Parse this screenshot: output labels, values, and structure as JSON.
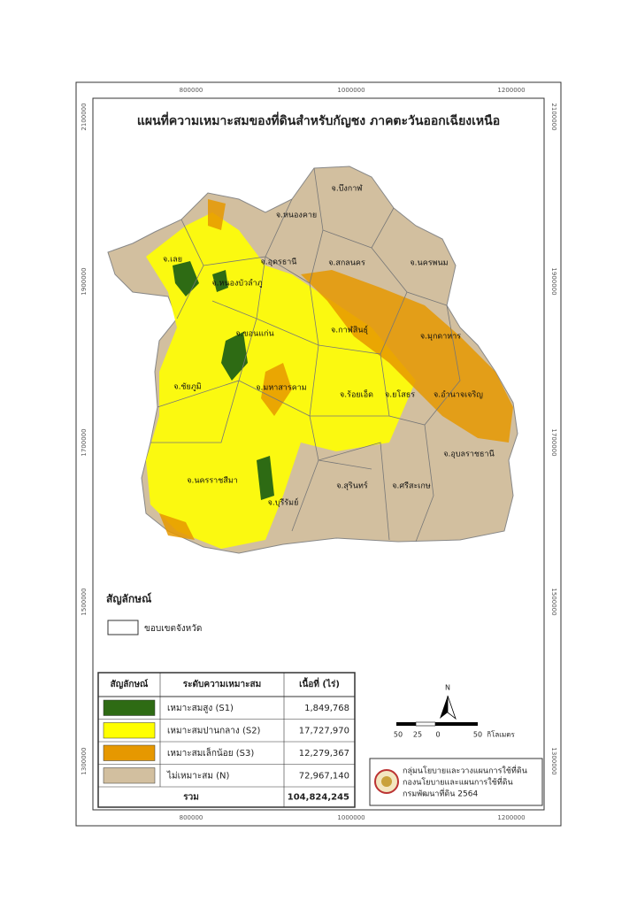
{
  "title": "แผนที่ความเหมาะสมของที่ดินสำหรับกัญชง ภาคตะวันออกเฉียงเหนือ",
  "frame_ticks": {
    "horizontal": [
      "800000",
      "1000000",
      "1200000"
    ],
    "vertical": [
      "2100000",
      "1900000",
      "1700000",
      "1500000",
      "1300000"
    ]
  },
  "provinces": [
    "จ.บึงกาฬ",
    "จ.หนองคาย",
    "จ.เลย",
    "จ.อุดรธานี",
    "จ.สกลนคร",
    "จ.นครพนม",
    "จ.หนองบัวลำภู",
    "จ.ขอนแก่น",
    "จ.กาฬสินธุ์",
    "จ.มุกดาหาร",
    "จ.ชัยภูมิ",
    "จ.มหาสารคาม",
    "จ.ร้อยเอ็ด",
    "จ.ยโสธร",
    "จ.อำนาจเจริญ",
    "จ.อุบลราชธานี",
    "จ.นครราชสีมา",
    "จ.บุรีรัมย์",
    "จ.สุรินทร์",
    "จ.ศรีสะเกษ"
  ],
  "legend": {
    "title": "สัญลักษณ์",
    "boundary": "ขอบเขตจังหวัด"
  },
  "table": {
    "header": [
      "สัญลักษณ์",
      "ระดับความเหมาะสม",
      "เนื้อที่ (ไร่)"
    ],
    "rows": [
      {
        "label": "เหมาะสมสูง (S1)",
        "area": "1,849,768",
        "color": "#2e6b14"
      },
      {
        "label": "เหมาะสมปานกลาง (S2)",
        "area": "17,727,970",
        "color": "#ffff00"
      },
      {
        "label": "เหมาะสมเล็กน้อย (S3)",
        "area": "12,279,367",
        "color": "#e69800"
      },
      {
        "label": "ไม่เหมาะสม (N)",
        "area": "72,967,140",
        "color": "#d2bf9f"
      }
    ],
    "total": {
      "label": "รวม",
      "area": "104,824,245"
    }
  },
  "north": "N",
  "scale": {
    "ticks": [
      "50",
      "25",
      "0",
      "50"
    ],
    "unit": "กิโลเมตร"
  },
  "credit": [
    "กลุ่มนโยบายและวางแผนการใช้ที่ดิน",
    "กองนโยบายและแผนการใช้ที่ดิน",
    "กรมพัฒนาที่ดิน 2564"
  ]
}
